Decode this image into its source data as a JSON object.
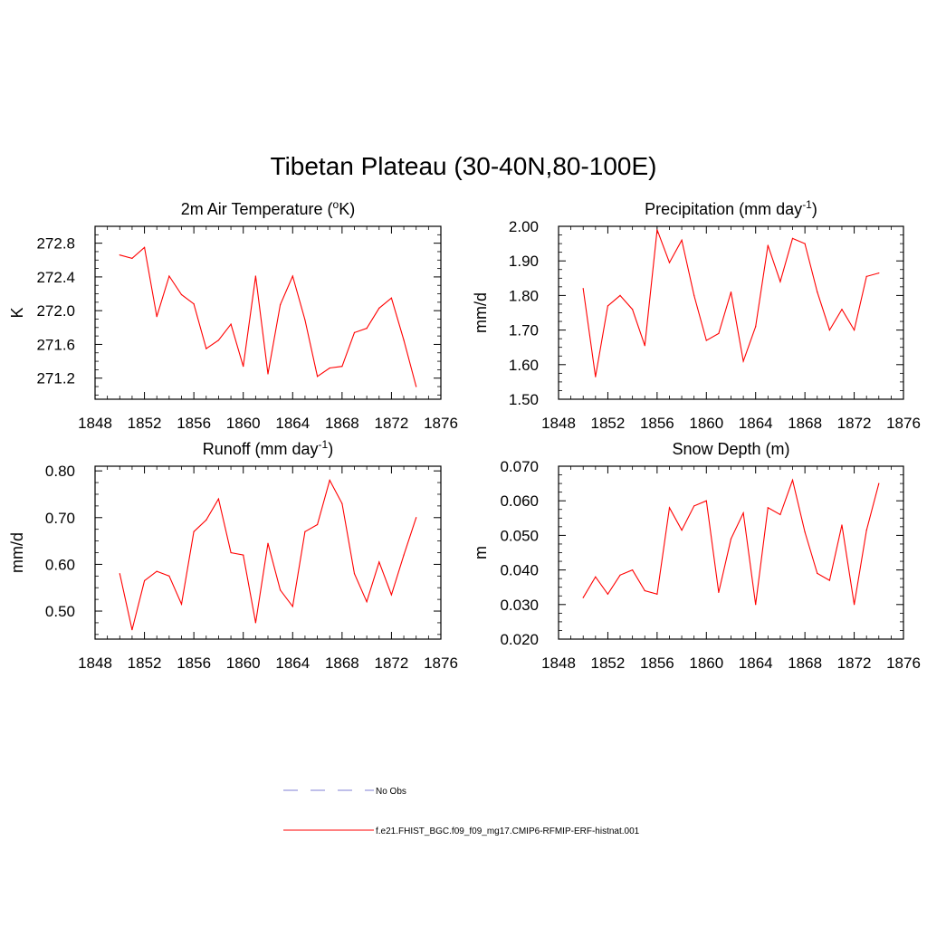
{
  "title": "Tibetan Plateau (30-40N,80-100E)",
  "line_color": "#ff0000",
  "obs_color": "#9999dd",
  "legend": {
    "entries": [
      {
        "label": "No Obs",
        "style": "dashed"
      },
      {
        "label": "f.e21.FHIST_BGC.f09_f09_mg17.CMIP6-RFMIP-ERF-histnat.001",
        "style": "solid"
      }
    ]
  },
  "chart_data": [
    {
      "type": "line",
      "title": "2m Air Temperature (oK)",
      "title_parts": [
        "2m Air Temperature (",
        "o",
        "K)"
      ],
      "ylabel": "K",
      "xlim": [
        1848,
        1876
      ],
      "ylim": [
        270.95,
        273.0
      ],
      "xticks": [
        "1848",
        "1852",
        "1856",
        "1860",
        "1864",
        "1868",
        "1872",
        "1876"
      ],
      "yticks": [
        "271.2",
        "271.6",
        "272.0",
        "272.4",
        "272.8"
      ],
      "x": [
        1850,
        1851,
        1852,
        1853,
        1854,
        1855,
        1856,
        1857,
        1858,
        1859,
        1860,
        1861,
        1862,
        1863,
        1864,
        1865,
        1866,
        1867,
        1868,
        1869,
        1870,
        1871,
        1872,
        1873,
        1874
      ],
      "series": [
        {
          "name": "f.e21.FHIST_BGC.f09_f09_mg17.CMIP6-RFMIP-ERF-histnat.001",
          "values": [
            272.66,
            272.62,
            272.75,
            271.93,
            272.41,
            272.19,
            272.08,
            271.55,
            271.65,
            271.84,
            271.34,
            272.41,
            271.25,
            272.07,
            272.41,
            271.89,
            271.22,
            271.32,
            271.34,
            271.74,
            271.79,
            272.03,
            272.15,
            271.65,
            271.1
          ]
        }
      ]
    },
    {
      "type": "line",
      "title": "Precipitation (mm day-1)",
      "title_parts": [
        "Precipitation (mm day",
        "-1",
        ")"
      ],
      "ylabel": "mm/d",
      "xlim": [
        1848,
        1876
      ],
      "ylim": [
        1.5,
        2.0
      ],
      "xticks": [
        "1848",
        "1852",
        "1856",
        "1860",
        "1864",
        "1868",
        "1872",
        "1876"
      ],
      "yticks": [
        "1.50",
        "1.60",
        "1.70",
        "1.80",
        "1.90",
        "2.00"
      ],
      "x": [
        1850,
        1851,
        1852,
        1853,
        1854,
        1855,
        1856,
        1857,
        1858,
        1859,
        1860,
        1861,
        1862,
        1863,
        1864,
        1865,
        1866,
        1867,
        1868,
        1869,
        1870,
        1871,
        1872,
        1873,
        1874
      ],
      "series": [
        {
          "name": "f.e21.FHIST_BGC.f09_f09_mg17.CMIP6-RFMIP-ERF-histnat.001",
          "values": [
            1.82,
            1.565,
            1.77,
            1.8,
            1.76,
            1.655,
            1.99,
            1.895,
            1.96,
            1.8,
            1.67,
            1.69,
            1.81,
            1.61,
            1.71,
            1.945,
            1.84,
            1.965,
            1.95,
            1.81,
            1.7,
            1.76,
            1.7,
            1.855,
            1.865
          ]
        }
      ]
    },
    {
      "type": "line",
      "title": "Runoff (mm day-1)",
      "title_parts": [
        "Runoff (mm day",
        "-1",
        ")"
      ],
      "ylabel": "mm/d",
      "xlim": [
        1848,
        1876
      ],
      "ylim": [
        0.44,
        0.81
      ],
      "xticks": [
        "1848",
        "1852",
        "1856",
        "1860",
        "1864",
        "1868",
        "1872",
        "1876"
      ],
      "yticks": [
        "0.50",
        "0.60",
        "0.70",
        "0.80"
      ],
      "x": [
        1850,
        1851,
        1852,
        1853,
        1854,
        1855,
        1856,
        1857,
        1858,
        1859,
        1860,
        1861,
        1862,
        1863,
        1864,
        1865,
        1866,
        1867,
        1868,
        1869,
        1870,
        1871,
        1872,
        1873,
        1874
      ],
      "series": [
        {
          "name": "f.e21.FHIST_BGC.f09_f09_mg17.CMIP6-RFMIP-ERF-histnat.001",
          "values": [
            0.58,
            0.46,
            0.565,
            0.585,
            0.575,
            0.515,
            0.67,
            0.695,
            0.74,
            0.625,
            0.62,
            0.475,
            0.645,
            0.545,
            0.51,
            0.67,
            0.685,
            0.78,
            0.73,
            0.58,
            0.52,
            0.605,
            0.535,
            0.62,
            0.7
          ]
        }
      ]
    },
    {
      "type": "line",
      "title": "Snow Depth (m)",
      "title_parts": [
        "Snow Depth (m)",
        "",
        ""
      ],
      "ylabel": "m",
      "xlim": [
        1848,
        1876
      ],
      "ylim": [
        0.02,
        0.07
      ],
      "xticks": [
        "1848",
        "1852",
        "1856",
        "1860",
        "1864",
        "1868",
        "1872",
        "1876"
      ],
      "yticks": [
        "0.020",
        "0.030",
        "0.040",
        "0.050",
        "0.060",
        "0.070"
      ],
      "x": [
        1850,
        1851,
        1852,
        1853,
        1854,
        1855,
        1856,
        1857,
        1858,
        1859,
        1860,
        1861,
        1862,
        1863,
        1864,
        1865,
        1866,
        1867,
        1868,
        1869,
        1870,
        1871,
        1872,
        1873,
        1874
      ],
      "series": [
        {
          "name": "f.e21.FHIST_BGC.f09_f09_mg17.CMIP6-RFMIP-ERF-histnat.001",
          "values": [
            0.032,
            0.038,
            0.033,
            0.0385,
            0.04,
            0.034,
            0.033,
            0.058,
            0.0515,
            0.0585,
            0.06,
            0.0335,
            0.049,
            0.0565,
            0.03,
            0.058,
            0.056,
            0.066,
            0.051,
            0.039,
            0.037,
            0.053,
            0.03,
            0.0515,
            0.065
          ]
        }
      ]
    }
  ]
}
